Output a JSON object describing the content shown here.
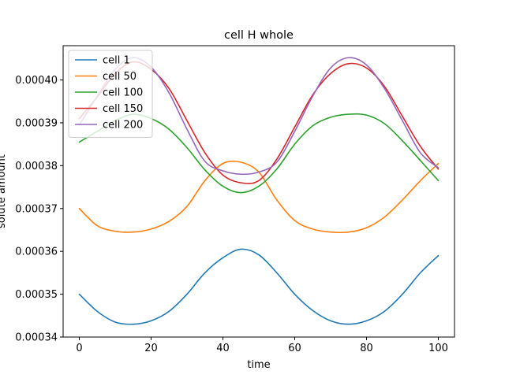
{
  "chart_data": {
    "type": "line",
    "title": "cell H whole",
    "xlabel": "time",
    "ylabel": "solute amount",
    "xlim": [
      -4.5,
      104.5
    ],
    "ylim": [
      0.00034,
      0.000408
    ],
    "xticks": [
      0,
      20,
      40,
      60,
      80,
      100
    ],
    "yticks": [
      "0.00034",
      "0.00035",
      "0.00036",
      "0.00037",
      "0.00038",
      "0.00039",
      "0.00040"
    ],
    "ytick_values": [
      0.00034,
      0.00035,
      0.00036,
      0.00037,
      0.00038,
      0.00039,
      0.0004
    ],
    "legend_position": "upper-left",
    "grid": false,
    "series": [
      {
        "name": "cell 1",
        "color": "#1f77b4",
        "x": [
          0,
          5,
          10,
          15,
          20,
          25,
          30,
          35,
          40,
          45,
          50,
          55,
          60,
          65,
          70,
          75,
          80,
          85,
          90,
          95,
          100
        ],
        "y": [
          0.00035,
          0.000346,
          0.0003435,
          0.000343,
          0.0003438,
          0.000346,
          0.00035,
          0.000355,
          0.0003585,
          0.0003605,
          0.0003592,
          0.000355,
          0.00035,
          0.0003462,
          0.0003438,
          0.000343,
          0.0003438,
          0.000346,
          0.00035,
          0.000355,
          0.000359
        ]
      },
      {
        "name": "cell 50",
        "color": "#ff7f0e",
        "x": [
          0,
          5,
          10,
          15,
          20,
          25,
          30,
          35,
          40,
          45,
          50,
          55,
          60,
          65,
          70,
          75,
          80,
          85,
          90,
          95,
          100
        ],
        "y": [
          0.00037,
          0.000366,
          0.0003647,
          0.0003645,
          0.0003652,
          0.000367,
          0.0003705,
          0.0003765,
          0.0003805,
          0.0003808,
          0.0003785,
          0.000372,
          0.0003672,
          0.0003652,
          0.0003645,
          0.0003645,
          0.0003655,
          0.000368,
          0.000372,
          0.0003765,
          0.0003805
        ]
      },
      {
        "name": "cell 100",
        "color": "#2ca02c",
        "x": [
          0,
          5,
          10,
          15,
          20,
          25,
          30,
          35,
          40,
          45,
          50,
          55,
          60,
          65,
          70,
          75,
          80,
          85,
          90,
          95,
          100
        ],
        "y": [
          0.0003855,
          0.000388,
          0.0003905,
          0.000392,
          0.000391,
          0.0003885,
          0.0003842,
          0.000379,
          0.0003752,
          0.0003737,
          0.0003752,
          0.0003792,
          0.000385,
          0.0003893,
          0.0003913,
          0.000392,
          0.0003918,
          0.0003898,
          0.0003858,
          0.0003812,
          0.0003765
        ]
      },
      {
        "name": "cell 150",
        "color": "#d62728",
        "x": [
          0,
          5,
          10,
          15,
          20,
          25,
          30,
          35,
          40,
          45,
          50,
          55,
          60,
          65,
          70,
          75,
          80,
          85,
          90,
          95,
          100
        ],
        "y": [
          0.000391,
          0.000396,
          0.0004015,
          0.0004042,
          0.0004025,
          0.000398,
          0.0003905,
          0.000383,
          0.0003778,
          0.000376,
          0.0003765,
          0.0003815,
          0.000389,
          0.0003965,
          0.0004015,
          0.0004038,
          0.0004028,
          0.0003985,
          0.0003915,
          0.0003845,
          0.0003792
        ]
      },
      {
        "name": "cell 200",
        "color": "#9467bd",
        "x": [
          0,
          5,
          10,
          15,
          20,
          25,
          30,
          35,
          40,
          45,
          50,
          55,
          60,
          65,
          70,
          75,
          80,
          85,
          90,
          95,
          100
        ],
        "y": [
          0.0003895,
          0.0003962,
          0.0004025,
          0.0004052,
          0.000403,
          0.000397,
          0.0003885,
          0.000381,
          0.0003788,
          0.000378,
          0.0003785,
          0.0003808,
          0.000388,
          0.0003962,
          0.0004028,
          0.0004052,
          0.0004035,
          0.000398,
          0.0003905,
          0.000383,
          0.0003795
        ]
      }
    ]
  }
}
